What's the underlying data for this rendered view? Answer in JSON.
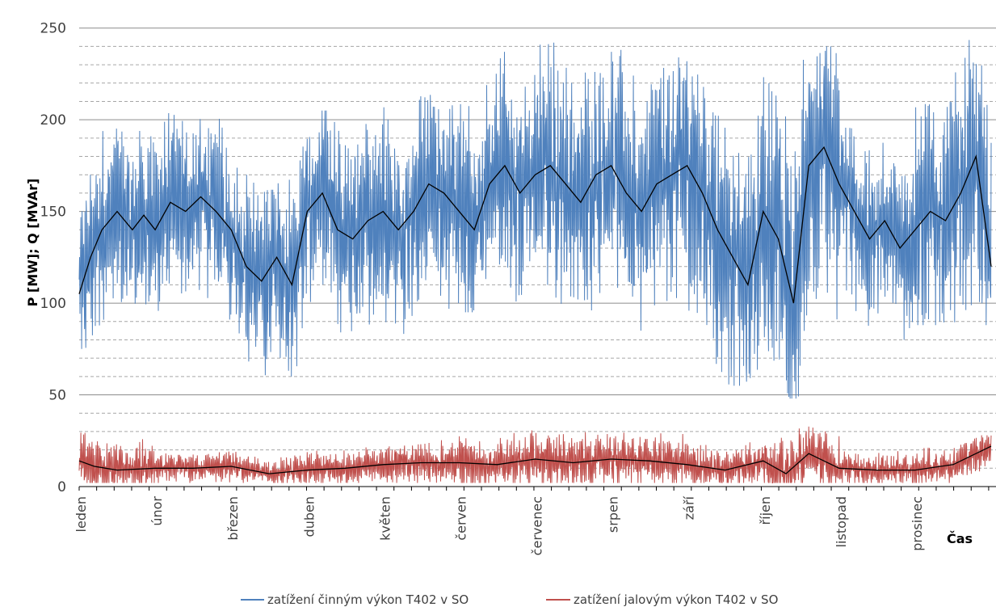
{
  "chart_data": {
    "type": "line",
    "title": "",
    "ylabel": "P [MW]; Q [MVAr]",
    "xlabel": "Čas",
    "ylim": [
      0,
      260
    ],
    "yticks": [
      0,
      50,
      100,
      150,
      200,
      250
    ],
    "y_major_grid": 50,
    "y_minor_grid": 10,
    "grid": true,
    "legend_position": "bottom",
    "months": [
      "leden",
      "únor",
      "březen",
      "duben",
      "květen",
      "červen",
      "červenec",
      "srpen",
      "září",
      "říjen",
      "listopad",
      "prosinec"
    ],
    "series": [
      {
        "name": "zatížení činným výkon T402 v SO",
        "color": "#4f81bd",
        "kind": "raw",
        "approx_range_by_month": [
          {
            "month": "leden",
            "min": 75,
            "max": 200,
            "mean": 140
          },
          {
            "month": "únor",
            "min": 90,
            "max": 210,
            "mean": 150
          },
          {
            "month": "březen",
            "min": 60,
            "max": 190,
            "mean": 125
          },
          {
            "month": "duben",
            "min": 70,
            "max": 205,
            "mean": 148
          },
          {
            "month": "květen",
            "min": 80,
            "max": 215,
            "mean": 152
          },
          {
            "month": "červen",
            "min": 95,
            "max": 245,
            "mean": 165
          },
          {
            "month": "červenec",
            "min": 90,
            "max": 250,
            "mean": 165
          },
          {
            "month": "srpen",
            "min": 85,
            "max": 248,
            "mean": 162
          },
          {
            "month": "září",
            "min": 55,
            "max": 240,
            "mean": 130
          },
          {
            "month": "říjen",
            "min": 48,
            "max": 240,
            "mean": 150
          },
          {
            "month": "listopad",
            "min": 80,
            "max": 205,
            "mean": 140
          },
          {
            "month": "prosinec",
            "min": 88,
            "max": 255,
            "mean": 155
          }
        ]
      },
      {
        "name": "zatížení jalovým výkon T402 v SO",
        "color": "#c0504d",
        "kind": "raw",
        "approx_range_by_month": [
          {
            "month": "leden",
            "min": 2,
            "max": 40,
            "mean": 10
          },
          {
            "month": "únor",
            "min": 2,
            "max": 22,
            "mean": 10
          },
          {
            "month": "březen",
            "min": 2,
            "max": 22,
            "mean": 9
          },
          {
            "month": "duben",
            "min": 2,
            "max": 25,
            "mean": 10
          },
          {
            "month": "květen",
            "min": 2,
            "max": 30,
            "mean": 12
          },
          {
            "month": "červen",
            "min": 2,
            "max": 38,
            "mean": 13
          },
          {
            "month": "červenec",
            "min": 2,
            "max": 38,
            "mean": 14
          },
          {
            "month": "srpen",
            "min": 2,
            "max": 40,
            "mean": 14
          },
          {
            "month": "září",
            "min": 2,
            "max": 30,
            "mean": 11
          },
          {
            "month": "říjen",
            "min": 2,
            "max": 43,
            "mean": 14
          },
          {
            "month": "listopad",
            "min": 2,
            "max": 25,
            "mean": 10
          },
          {
            "month": "prosinec",
            "min": 2,
            "max": 28,
            "mean": 12
          }
        ]
      },
      {
        "name": "",
        "color": "#000000",
        "kind": "moving-average-P",
        "x_month_fraction": [
          0,
          0.15,
          0.3,
          0.5,
          0.7,
          0.85,
          1,
          1.2,
          1.4,
          1.6,
          1.8,
          2,
          2.2,
          2.4,
          2.6,
          2.8,
          3,
          3.2,
          3.4,
          3.6,
          3.8,
          4,
          4.2,
          4.4,
          4.6,
          4.8,
          5,
          5.2,
          5.4,
          5.6,
          5.8,
          6,
          6.2,
          6.4,
          6.6,
          6.8,
          7,
          7.2,
          7.4,
          7.6,
          7.8,
          8,
          8.2,
          8.4,
          8.6,
          8.8,
          9,
          9.2,
          9.4,
          9.6,
          9.8,
          10,
          10.2,
          10.4,
          10.6,
          10.8,
          11,
          11.2,
          11.4,
          11.6,
          11.8,
          12
        ],
        "values": [
          105,
          125,
          140,
          150,
          140,
          148,
          140,
          155,
          150,
          158,
          150,
          140,
          120,
          112,
          125,
          110,
          150,
          160,
          140,
          135,
          145,
          150,
          140,
          150,
          165,
          160,
          150,
          140,
          165,
          175,
          160,
          170,
          175,
          165,
          155,
          170,
          175,
          160,
          150,
          165,
          170,
          175,
          160,
          140,
          125,
          110,
          150,
          135,
          100,
          175,
          185,
          165,
          150,
          135,
          145,
          130,
          140,
          150,
          145,
          160,
          180,
          120
        ]
      },
      {
        "name": "",
        "color": "#000000",
        "kind": "moving-average-Q",
        "x_month_fraction": [
          0,
          0.2,
          0.5,
          1,
          1.5,
          2,
          2.5,
          3,
          3.5,
          4,
          4.5,
          5,
          5.5,
          6,
          6.5,
          7,
          7.5,
          8,
          8.5,
          9,
          9.3,
          9.6,
          10,
          10.5,
          11,
          11.5,
          12
        ],
        "values": [
          14,
          11,
          9,
          10,
          10,
          11,
          7,
          9,
          10,
          12,
          13,
          13,
          12,
          15,
          13,
          15,
          14,
          12,
          9,
          14,
          7,
          18,
          10,
          9,
          9,
          12,
          22
        ]
      }
    ]
  }
}
